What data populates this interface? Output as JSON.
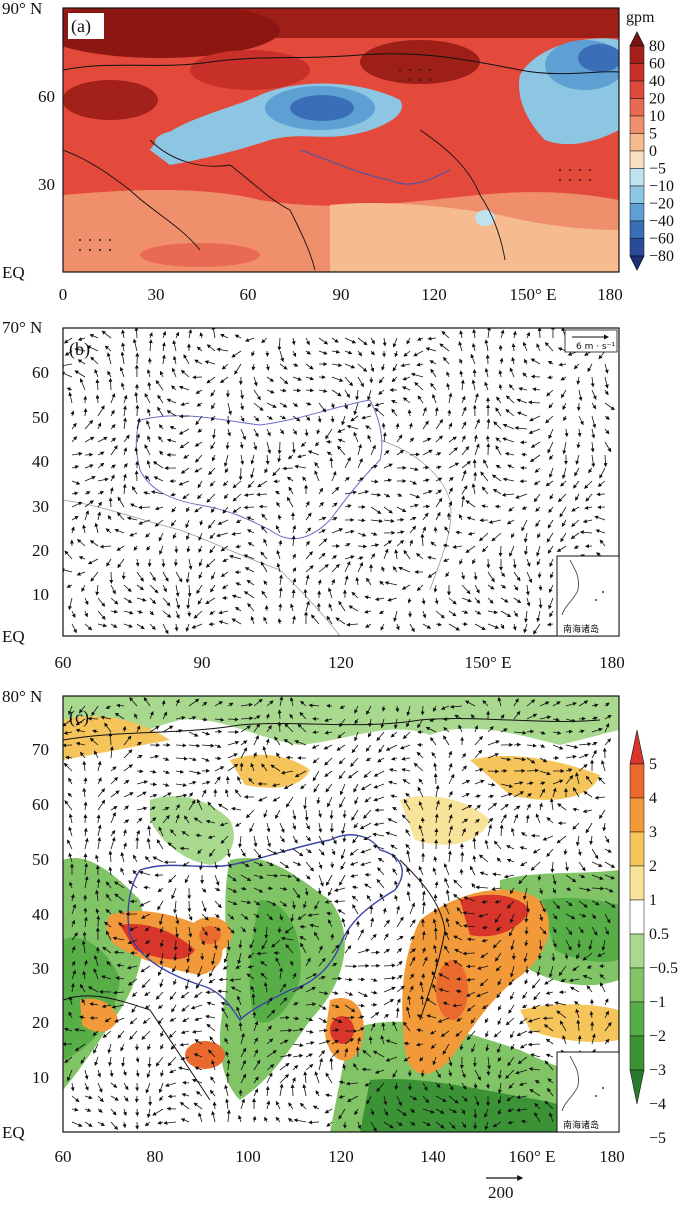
{
  "panel_a": {
    "label": "(a)",
    "unit": "gpm",
    "y_ticks": [
      "90° N",
      "60",
      "30",
      "EQ"
    ],
    "x_ticks": [
      "0",
      "30",
      "60",
      "90",
      "120",
      "150° E",
      "180"
    ],
    "colorbar_labels": [
      "80",
      "60",
      "40",
      "20",
      "10",
      "5",
      "0",
      "−5",
      "−10",
      "−20",
      "−40",
      "−60",
      "−80"
    ],
    "colorbar_colors": [
      "#7a1410",
      "#a4201b",
      "#c8302a",
      "#dc4a3c",
      "#e86a52",
      "#f08f6c",
      "#f6bb8e",
      "#f8dfbd",
      "#bfe3ee",
      "#8cc6e2",
      "#5ea0d4",
      "#3a6fb8",
      "#2a4b9a",
      "#1d2f7a"
    ]
  },
  "panel_b": {
    "label": "(b)",
    "reference_vector": "6 m · s⁻¹",
    "inset_caption": "南海诸岛",
    "y_ticks": [
      "70° N",
      "60",
      "50",
      "40",
      "30",
      "20",
      "10",
      "EQ"
    ],
    "x_ticks": [
      "60",
      "90",
      "120",
      "150° E",
      "180"
    ]
  },
  "panel_c": {
    "label": "(c)",
    "inset_caption": "南海诸岛",
    "y_ticks": [
      "80° N",
      "70",
      "60",
      "50",
      "40",
      "30",
      "20",
      "10",
      "EQ"
    ],
    "x_ticks": [
      "60",
      "80",
      "100",
      "120",
      "140",
      "160° E",
      "180"
    ],
    "colorbar_labels": [
      "5",
      "4",
      "3",
      "2",
      "1",
      "0.5",
      "−0.5",
      "−1",
      "−2",
      "−3",
      "−4",
      "−5"
    ],
    "colorbar_colors": [
      "#d8362a",
      "#ea6a2e",
      "#f29a3a",
      "#f5c45a",
      "#f8e39a",
      "#ffffff",
      "#a9d98f",
      "#80c466",
      "#57ad46",
      "#3b9336",
      "#2a7a2c"
    ],
    "reference_vector": "200"
  }
}
